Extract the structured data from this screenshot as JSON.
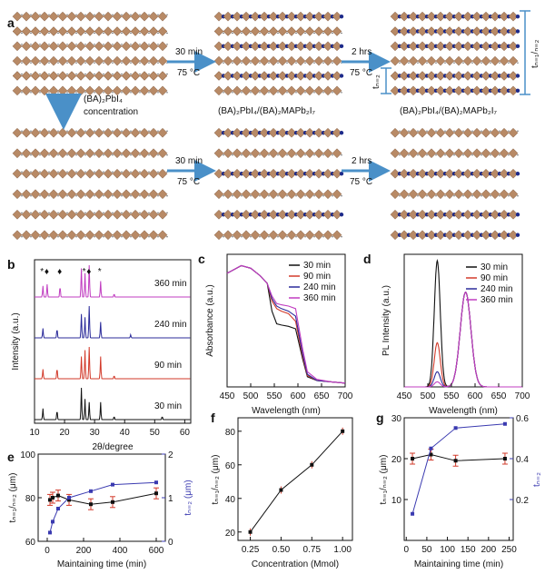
{
  "panel_a": {
    "label": "a",
    "arrows": [
      {
        "top": "30 min",
        "bottom": "75 °C"
      },
      {
        "top": "2 hrs",
        "bottom": "75 °C"
      },
      {
        "top": "30 min",
        "bottom": "75 °C"
      },
      {
        "top": "2 hrs",
        "bottom": "75 °C"
      }
    ],
    "start_caption": "(BA)₂PbI₄",
    "concentration_line1": "(BA)₂PbI₄",
    "concentration_line2": "concentration",
    "mid_caption": "(BA)₂PbI₄/(BA)₂MAPb₂I₇",
    "end_caption": "(BA)₂PbI₄/(BA)₂MAPb₂I₇",
    "t_n1": "tₙ₌₁/ₙ₌₂",
    "t_n2": "tₙ₌₂"
  },
  "panel_b": {
    "label": "b",
    "xlabel": "2θ/degree",
    "ylabel": "Intensity (a.u.)",
    "series_labels": [
      "360 min",
      "240 min",
      "90 min",
      "30 min"
    ],
    "colors": [
      "#c03cc0",
      "#2b2b9a",
      "#d23a2a",
      "#111111"
    ]
  },
  "panel_c": {
    "label": "c",
    "xlabel": "Wavelength (nm)",
    "ylabel": "Absorbance (a.u.)",
    "legend": [
      "30 min",
      "90 min",
      "240 min",
      "360 min"
    ]
  },
  "panel_d": {
    "label": "d",
    "xlabel": "Wavelength (nm)",
    "ylabel": "PL Intensity (a.u.)",
    "legend": [
      "30 min",
      "90 min",
      "240 min",
      "360 min"
    ]
  },
  "panel_e": {
    "label": "e",
    "xlabel": "Maintaining time (min)",
    "ylabel_left": "tₙ₌₁/ₙ₌₂ (μm)",
    "ylabel_right": "tₙ₌₂ (μm)"
  },
  "panel_f": {
    "label": "f",
    "xlabel": "Concentration (Mmol)",
    "ylabel": "tₙ₌₁/ₙ₌₂ (μm)"
  },
  "panel_g": {
    "label": "g",
    "xlabel": "Maintaining time (min)",
    "ylabel_left": "tₙ₌₁/ₙ₌₂ (μm)",
    "ylabel_right": "tₙ₌₂"
  },
  "chart_data": [
    {
      "type": "line",
      "panel": "b",
      "x_ticks": [
        10,
        20,
        30,
        40,
        50,
        60
      ],
      "xlim": [
        10,
        62
      ],
      "series": [
        {
          "name": "360 min",
          "peaks": [
            [
              12.8,
              0.35
            ],
            [
              14.2,
              0.4
            ],
            [
              18.5,
              0.35
            ],
            [
              25.6,
              0.9
            ],
            [
              26.8,
              0.75
            ],
            [
              28.2,
              1.0
            ],
            [
              32.0,
              0.5
            ],
            [
              36.5,
              0.1
            ]
          ]
        },
        {
          "name": "240 min",
          "peaks": [
            [
              12.8,
              0.3
            ],
            [
              17.5,
              0.3
            ],
            [
              25.6,
              0.75
            ],
            [
              26.8,
              0.65
            ],
            [
              28.2,
              1.0
            ],
            [
              32.0,
              0.5
            ],
            [
              42.0,
              0.1
            ]
          ]
        },
        {
          "name": "90 min",
          "peaks": [
            [
              12.8,
              0.3
            ],
            [
              17.5,
              0.35
            ],
            [
              25.6,
              0.7
            ],
            [
              26.8,
              0.9
            ],
            [
              28.2,
              1.0
            ],
            [
              32.0,
              0.7
            ],
            [
              36.5,
              0.1
            ]
          ]
        },
        {
          "name": "30 min",
          "peaks": [
            [
              12.8,
              0.35
            ],
            [
              17.5,
              0.3
            ],
            [
              25.6,
              1.0
            ],
            [
              26.8,
              0.65
            ],
            [
              28.2,
              0.55
            ],
            [
              32.0,
              0.55
            ],
            [
              36.5,
              0.1
            ],
            [
              52.5,
              0.1
            ]
          ]
        }
      ]
    },
    {
      "type": "line",
      "panel": "c",
      "x_ticks": [
        450,
        500,
        550,
        600,
        650,
        700
      ],
      "xlim": [
        450,
        700
      ],
      "series": [
        {
          "name": "30 min",
          "color": "#111111",
          "x": [
            450,
            480,
            500,
            520,
            535,
            545,
            555,
            565,
            580,
            595,
            610,
            620,
            640,
            670,
            700
          ],
          "y": [
            0.9,
            0.96,
            0.94,
            0.88,
            0.82,
            0.6,
            0.5,
            0.49,
            0.48,
            0.46,
            0.22,
            0.08,
            0.05,
            0.04,
            0.03
          ]
        },
        {
          "name": "90 min",
          "color": "#d23a2a",
          "x": [
            450,
            480,
            500,
            520,
            535,
            545,
            555,
            565,
            580,
            595,
            610,
            620,
            640,
            670,
            700
          ],
          "y": [
            0.9,
            0.96,
            0.94,
            0.88,
            0.82,
            0.68,
            0.62,
            0.6,
            0.58,
            0.52,
            0.24,
            0.09,
            0.05,
            0.04,
            0.03
          ]
        },
        {
          "name": "240 min",
          "color": "#2b2b9a",
          "x": [
            450,
            480,
            500,
            520,
            535,
            545,
            555,
            565,
            580,
            595,
            610,
            620,
            640,
            670,
            700
          ],
          "y": [
            0.9,
            0.96,
            0.94,
            0.88,
            0.82,
            0.7,
            0.64,
            0.62,
            0.6,
            0.56,
            0.26,
            0.1,
            0.05,
            0.04,
            0.03
          ]
        },
        {
          "name": "360 min",
          "color": "#c03cc0",
          "x": [
            450,
            480,
            500,
            520,
            535,
            545,
            555,
            565,
            580,
            595,
            610,
            620,
            640,
            670,
            700
          ],
          "y": [
            0.9,
            0.96,
            0.94,
            0.88,
            0.82,
            0.72,
            0.66,
            0.65,
            0.64,
            0.62,
            0.3,
            0.12,
            0.06,
            0.04,
            0.03
          ]
        }
      ]
    },
    {
      "type": "line",
      "panel": "d",
      "x_ticks": [
        450,
        500,
        550,
        600,
        650,
        700
      ],
      "xlim": [
        450,
        700
      ],
      "series": [
        {
          "name": "30 min",
          "color": "#111111",
          "peak1": [
            520,
            1.0
          ],
          "peak2": [
            580,
            0.75
          ]
        },
        {
          "name": "90 min",
          "color": "#d23a2a",
          "peak1": [
            520,
            0.35
          ],
          "peak2": [
            580,
            0.75
          ]
        },
        {
          "name": "240 min",
          "color": "#2b2b9a",
          "peak1": [
            520,
            0.12
          ],
          "peak2": [
            580,
            0.75
          ]
        },
        {
          "name": "360 min",
          "color": "#c03cc0",
          "peak1": [
            520,
            0.04
          ],
          "peak2": [
            580,
            0.75
          ]
        }
      ]
    },
    {
      "type": "line",
      "panel": "e",
      "x_ticks": [
        0,
        200,
        400,
        600
      ],
      "xlim": [
        -50,
        650
      ],
      "y_left_ticks": [
        60,
        80,
        100
      ],
      "y_left_lim": [
        60,
        100
      ],
      "y_right_ticks": [
        0,
        1,
        2
      ],
      "y_right_lim": [
        0,
        2
      ],
      "series": [
        {
          "axis": "left",
          "color": "#111111",
          "x": [
            15,
            30,
            60,
            120,
            240,
            360,
            600
          ],
          "y": [
            79,
            80,
            81,
            79,
            77,
            78,
            82
          ]
        },
        {
          "axis": "right",
          "color": "#3a3ab0",
          "x": [
            15,
            30,
            60,
            120,
            240,
            360,
            600
          ],
          "y": [
            0.2,
            0.45,
            0.75,
            1.0,
            1.15,
            1.3,
            1.35
          ]
        }
      ]
    },
    {
      "type": "line",
      "panel": "f",
      "x_ticks": [
        0.25,
        0.5,
        0.75,
        1.0
      ],
      "xlim": [
        0.15,
        1.08
      ],
      "y_ticks": [
        20,
        40,
        60,
        80
      ],
      "ylim": [
        15,
        88
      ],
      "series": [
        {
          "color": "#111111",
          "x": [
            0.25,
            0.5,
            0.75,
            1.0
          ],
          "y": [
            20,
            45,
            60,
            80
          ]
        }
      ]
    },
    {
      "type": "line",
      "panel": "g",
      "x_ticks": [
        0,
        50,
        100,
        150,
        200,
        250
      ],
      "xlim": [
        -5,
        260
      ],
      "y_left_ticks": [
        10,
        20,
        30
      ],
      "y_left_lim": [
        0,
        30
      ],
      "y_right_ticks": [
        0.2,
        0.4,
        0.6
      ],
      "y_right_lim": [
        0,
        0.6
      ],
      "series": [
        {
          "axis": "left",
          "color": "#111111",
          "x": [
            15,
            60,
            120,
            240
          ],
          "y": [
            20,
            21,
            19.5,
            20
          ]
        },
        {
          "axis": "right",
          "color": "#3a3ab0",
          "x": [
            15,
            60,
            120,
            240
          ],
          "y": [
            0.13,
            0.45,
            0.55,
            0.57
          ]
        }
      ]
    }
  ]
}
